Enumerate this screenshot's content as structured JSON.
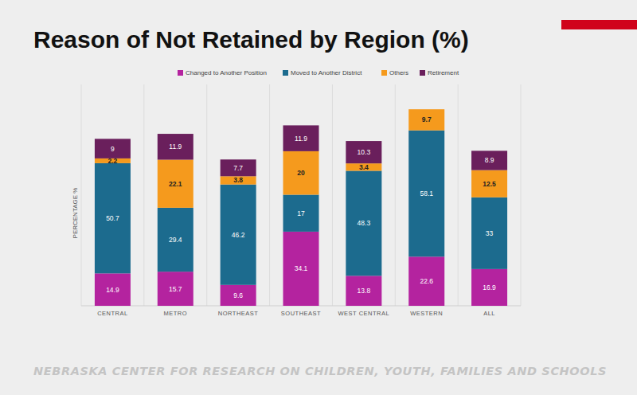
{
  "chart_data": {
    "type": "bar",
    "title": "Reason of Not Retained by Region (%)",
    "y_label": "PERCENTAGE %",
    "categories": [
      "CENTRAL",
      "METRO",
      "NORTHEAST",
      "SOUTHEAST",
      "WEST CENTRAL",
      "WESTERN",
      "ALL"
    ],
    "series": [
      {
        "name": "Changed to Another Position",
        "color": "#b4239f",
        "values": [
          14.9,
          15.7,
          9.6,
          34.1,
          13.8,
          22.6,
          16.9
        ]
      },
      {
        "name": "Moved to Another District",
        "color": "#1c6b8e",
        "values": [
          50.7,
          29.4,
          46.2,
          17,
          48.3,
          58.1,
          33
        ]
      },
      {
        "name": "Others",
        "color": "#f59a1d",
        "values": [
          2.2,
          22.1,
          3.8,
          20,
          3.4,
          9.7,
          12.5
        ]
      },
      {
        "name": "Retirement",
        "color": "#6a1f5c",
        "values": [
          9,
          11.9,
          7.7,
          11.9,
          10.3,
          null,
          8.9
        ]
      }
    ],
    "ylim": [
      0,
      100
    ],
    "stacked": true,
    "data_labels": true,
    "tick_labels": "x",
    "legend": "top",
    "grid": false
  },
  "footer": "NEBRASKA CENTER FOR RESEARCH ON CHILDREN, YOUTH, FAMILIES AND SCHOOLS"
}
